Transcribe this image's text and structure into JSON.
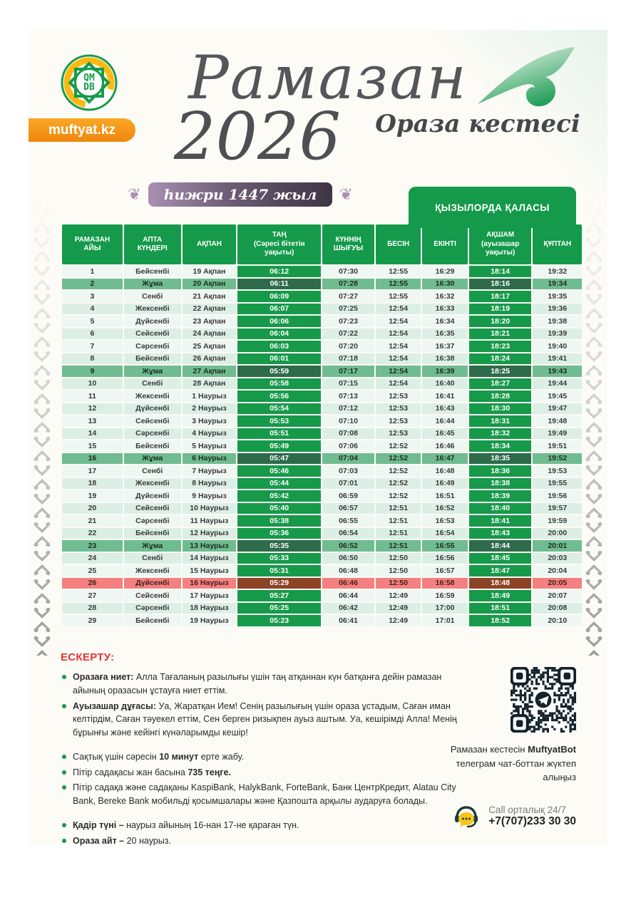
{
  "colors": {
    "accent_green": "#149a4a",
    "friday_row": "#6fbc90",
    "friday_cell": "#2e6b4a",
    "qadir_row": "#f58080",
    "qadir_cell": "#8d4325",
    "badge_orange": "#f6991c",
    "hijri_purple": "#6b5b73",
    "note_red": "#e23333"
  },
  "brand": {
    "logo_text": "QM\nDB",
    "site": "muftyat.kz"
  },
  "header": {
    "title_script": "Рамазан",
    "year": "2026",
    "subtitle_script": "Ораза кестесі",
    "hijri_badge": "һижри 1447 жыл",
    "city": "ҚЫЗЫЛОРДА ҚАЛАСЫ"
  },
  "table": {
    "headers": [
      "РАМАЗАН\nАЙЫ",
      "АПТА\nКҮНДЕРІ",
      "АҚПАН",
      "ТАҢ\n(Сәресі бітетін\nуақыты)",
      "КҮННІҢ\nШЫҒУЫ",
      "БЕСІН",
      "ЕКІНТІ",
      "АҚШАМ\n(ауызашар\nуақыты)",
      "ҚҰПТАН"
    ],
    "col_widths_pct": [
      11.9,
      11.2,
      10.6,
      16.4,
      10.2,
      8.9,
      8.9,
      12.3,
      9.6
    ],
    "friday_days": [
      2,
      9,
      16,
      23
    ],
    "qadir_day": 26,
    "rows": [
      [
        "1",
        "Бейсенбі",
        "19 Ақпан",
        "06:12",
        "07:30",
        "12:55",
        "16:29",
        "18:14",
        "19:32"
      ],
      [
        "2",
        "Жұма",
        "20 Ақпан",
        "06:11",
        "07:28",
        "12:55",
        "16:30",
        "18:16",
        "19:34"
      ],
      [
        "3",
        "Сенбі",
        "21 Ақпан",
        "06:09",
        "07:27",
        "12:55",
        "16:32",
        "18:17",
        "19:35"
      ],
      [
        "4",
        "Жексенбі",
        "22 Ақпан",
        "06:07",
        "07:25",
        "12:54",
        "16:33",
        "18:19",
        "19:36"
      ],
      [
        "5",
        "Дүйсенбі",
        "23 Ақпан",
        "06:06",
        "07:23",
        "12:54",
        "16:34",
        "18:20",
        "19:38"
      ],
      [
        "6",
        "Сейсенбі",
        "24 Ақпан",
        "06:04",
        "07:22",
        "12:54",
        "16:35",
        "18:21",
        "19:39"
      ],
      [
        "7",
        "Сәрсенбі",
        "25 Ақпан",
        "06:03",
        "07:20",
        "12:54",
        "16:37",
        "18:23",
        "19:40"
      ],
      [
        "8",
        "Бейсенбі",
        "26 Ақпан",
        "06:01",
        "07:18",
        "12:54",
        "16:38",
        "18:24",
        "19:41"
      ],
      [
        "9",
        "Жұма",
        "27 Ақпан",
        "05:59",
        "07:17",
        "12:54",
        "16:39",
        "18:25",
        "19:43"
      ],
      [
        "10",
        "Сенбі",
        "28 Ақпан",
        "05:58",
        "07:15",
        "12:54",
        "16:40",
        "18:27",
        "19:44"
      ],
      [
        "11",
        "Жексенбі",
        "1 Наурыз",
        "05:56",
        "07:13",
        "12:53",
        "16:41",
        "18:28",
        "19:45"
      ],
      [
        "12",
        "Дүйсенбі",
        "2 Наурыз",
        "05:54",
        "07:12",
        "12:53",
        "16:43",
        "18:30",
        "19:47"
      ],
      [
        "13",
        "Сейсенбі",
        "3 Наурыз",
        "05:53",
        "07:10",
        "12:53",
        "16:44",
        "18:31",
        "19:48"
      ],
      [
        "14",
        "Сәрсенбі",
        "4 Наурыз",
        "05:51",
        "07:08",
        "12:53",
        "16:45",
        "18:32",
        "19:49"
      ],
      [
        "15",
        "Бейсенбі",
        "5 Наурыз",
        "05:49",
        "07:06",
        "12:52",
        "16:46",
        "18:34",
        "19:51"
      ],
      [
        "16",
        "Жұма",
        "6 Наурыз",
        "05:47",
        "07:04",
        "12:52",
        "16:47",
        "18:35",
        "19:52"
      ],
      [
        "17",
        "Сенбі",
        "7 Наурыз",
        "05:46",
        "07:03",
        "12:52",
        "16:48",
        "18:36",
        "19:53"
      ],
      [
        "18",
        "Жексенбі",
        "8 Наурыз",
        "05:44",
        "07:01",
        "12:52",
        "16:49",
        "18:38",
        "19:55"
      ],
      [
        "19",
        "Дүйсенбі",
        "9 Наурыз",
        "05:42",
        "06:59",
        "12:52",
        "16:51",
        "18:39",
        "19:56"
      ],
      [
        "20",
        "Сейсенбі",
        "10 Наурыз",
        "05:40",
        "06:57",
        "12:51",
        "16:52",
        "18:40",
        "19:57"
      ],
      [
        "21",
        "Сәрсенбі",
        "11 Наурыз",
        "05:38",
        "06:55",
        "12:51",
        "16:53",
        "18:41",
        "19:59"
      ],
      [
        "22",
        "Бейсенбі",
        "12 Наурыз",
        "05:36",
        "06:54",
        "12:51",
        "16:54",
        "18:43",
        "20:00"
      ],
      [
        "23",
        "Жұма",
        "13 Наурыз",
        "05:35",
        "06:52",
        "12:51",
        "16:55",
        "18:44",
        "20:01"
      ],
      [
        "24",
        "Сенбі",
        "14 Наурыз",
        "05:33",
        "06:50",
        "12:50",
        "16:56",
        "18:45",
        "20:03"
      ],
      [
        "25",
        "Жексенбі",
        "15 Наурыз",
        "05:31",
        "06:48",
        "12:50",
        "16:57",
        "18:47",
        "20:04"
      ],
      [
        "26",
        "Дүйсенбі",
        "16 Наурыз",
        "05:29",
        "06:46",
        "12:50",
        "16:58",
        "18:48",
        "20:05"
      ],
      [
        "27",
        "Сейсенбі",
        "17 Наурыз",
        "05:27",
        "06:44",
        "12:49",
        "16:59",
        "18:49",
        "20:07"
      ],
      [
        "28",
        "Сәрсенбі",
        "18 Наурыз",
        "05:25",
        "06:42",
        "12:49",
        "17:00",
        "18:51",
        "20:08"
      ],
      [
        "29",
        "Бейсенбі",
        "19 Наурыз",
        "05:23",
        "06:41",
        "12:49",
        "17:01",
        "18:52",
        "20:10"
      ]
    ]
  },
  "notes": {
    "heading": "ЕСКЕРТУ:",
    "groups": [
      [
        [
          {
            "t": "Оразаға ниет:",
            "b": true
          },
          {
            "t": " Алла Тағаланың разылығы үшін таң атқаннан күн батқанға дейін рамазан айының оразасын ұстауға ниет еттім."
          }
        ],
        [
          {
            "t": "Ауызашар дұғасы:",
            "b": true
          },
          {
            "t": " Уа, Жаратқан Ием! Сенің разылығың үшін ораза ұстадым, Саған иман келтірдім, Саған тәуекел еттім, Сен берген ризықпен ауыз аштым. Уа, кешірімді Алла! Менің бұрынғы және кейінгі күнәларымды кешір!"
          }
        ]
      ],
      [
        [
          {
            "t": "Сақтық үшін сәресін "
          },
          {
            "t": "10 минут",
            "b": true
          },
          {
            "t": " ерте жабу."
          }
        ],
        [
          {
            "t": "Пітір садақасы жан басына "
          },
          {
            "t": "735 теңге.",
            "b": true
          }
        ],
        [
          {
            "t": "Пітір садақа және садақаны KaspiBank, HalykBank, ForteBank, Банк ЦентрКредит, Alatau City Bank, Bereke Bank мобильді қосымшалары және Қазпошта арқылы аударуға болады."
          }
        ]
      ],
      [
        [
          {
            "t": "Қадір түні –",
            "b": true
          },
          {
            "t": " наурыз айының 16-нан 17-не қараған түн."
          }
        ],
        [
          {
            "t": "Ораза айт –",
            "b": true
          },
          {
            "t": " 20 наурыз."
          }
        ]
      ]
    ]
  },
  "contact": {
    "qr_caption": [
      {
        "t": "Рамазан кестесін "
      },
      {
        "t": "MuftyatBot",
        "b": true
      },
      {
        "t": " телеграм чат-боттан жүктеп алыңыз"
      }
    ],
    "call_label": "Call орталық 24/7",
    "phone": "+7(707)233 30 30"
  }
}
